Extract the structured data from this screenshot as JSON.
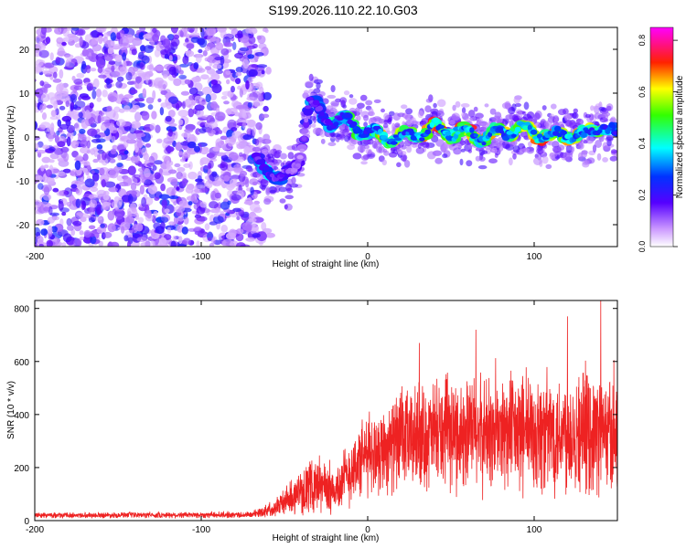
{
  "title": "S199.2026.110.22.10.G03",
  "chart_data": [
    {
      "type": "heatmap",
      "xlabel": "Height of straight line (km)",
      "ylabel": "Frequency (Hz)",
      "xlim": [
        -200,
        150
      ],
      "ylim": [
        -25,
        25
      ],
      "xticks": [
        -200,
        -100,
        0,
        100
      ],
      "yticks": [
        -20,
        -10,
        0,
        10,
        20
      ],
      "xtick_labels": [
        "-200",
        "-100",
        "0",
        "100"
      ],
      "ytick_labels": [
        "-20",
        "-10",
        "0",
        "10",
        "20"
      ],
      "noise_region": {
        "x_range": [
          -200,
          -62
        ],
        "frequency_range": [
          -25,
          25
        ],
        "amplitude_range": [
          0.05,
          0.2
        ]
      },
      "ridge": [
        {
          "x": -67,
          "freq": -6,
          "amp": 0.3
        },
        {
          "x": -60,
          "freq": -7,
          "amp": 0.35
        },
        {
          "x": -52,
          "freq": -10,
          "amp": 0.28
        },
        {
          "x": -45,
          "freq": -8,
          "amp": 0.2
        },
        {
          "x": -40,
          "freq": -3,
          "amp": 0.15
        },
        {
          "x": -35,
          "freq": 8,
          "amp": 0.3
        },
        {
          "x": -30,
          "freq": 6,
          "amp": 0.3
        },
        {
          "x": -25,
          "freq": 4,
          "amp": 0.35
        },
        {
          "x": -20,
          "freq": 4,
          "amp": 0.4
        },
        {
          "x": -10,
          "freq": 3,
          "amp": 0.45
        },
        {
          "x": 0,
          "freq": 1,
          "amp": 0.45
        },
        {
          "x": 10,
          "freq": 0,
          "amp": 0.6
        },
        {
          "x": 20,
          "freq": 0,
          "amp": 0.55
        },
        {
          "x": 30,
          "freq": 1,
          "amp": 0.6
        },
        {
          "x": 40,
          "freq": 2,
          "amp": 0.7
        },
        {
          "x": 50,
          "freq": 1,
          "amp": 0.55
        },
        {
          "x": 60,
          "freq": 1,
          "amp": 0.65
        },
        {
          "x": 70,
          "freq": 0,
          "amp": 0.6
        },
        {
          "x": 80,
          "freq": 1,
          "amp": 0.55
        },
        {
          "x": 90,
          "freq": 2,
          "amp": 0.6
        },
        {
          "x": 100,
          "freq": 1,
          "amp": 0.7
        },
        {
          "x": 110,
          "freq": 0,
          "amp": 0.6
        },
        {
          "x": 120,
          "freq": 1,
          "amp": 0.65
        },
        {
          "x": 130,
          "freq": 0,
          "amp": 0.55
        },
        {
          "x": 140,
          "freq": 3,
          "amp": 0.5
        },
        {
          "x": 150,
          "freq": 0,
          "amp": 0.45
        }
      ],
      "colorbar": {
        "label": "Normalized spectral amplitude",
        "range": [
          0,
          0.85
        ],
        "ticks": [
          0.0,
          0.2,
          0.4,
          0.6,
          0.8
        ],
        "tick_labels": [
          "0.0",
          "0.2",
          "0.4",
          "0.6",
          "0.8"
        ],
        "colors": [
          "#ffffff",
          "#9966ff",
          "#0000ff",
          "#00ffff",
          "#00ff00",
          "#ffff00",
          "#ff0000",
          "#ff00ff"
        ]
      }
    },
    {
      "type": "line",
      "xlabel": "Height of straight line (km)",
      "ylabel": "SNR (10 * v/v)",
      "xlim": [
        -200,
        150
      ],
      "ylim": [
        0,
        830
      ],
      "xticks": [
        -200,
        -100,
        0,
        100
      ],
      "yticks": [
        0,
        200,
        400,
        600,
        800
      ],
      "xtick_labels": [
        "-200",
        "-100",
        "0",
        "100"
      ],
      "ytick_labels": [
        "0",
        "200",
        "400",
        "600",
        "800"
      ],
      "color": "#ee2222",
      "envelope": [
        {
          "x": -200,
          "mean": 20,
          "spread": 10
        },
        {
          "x": -70,
          "mean": 22,
          "spread": 12
        },
        {
          "x": -60,
          "mean": 40,
          "spread": 25
        },
        {
          "x": -50,
          "mean": 70,
          "spread": 50
        },
        {
          "x": -40,
          "mean": 110,
          "spread": 80
        },
        {
          "x": -30,
          "mean": 140,
          "spread": 110
        },
        {
          "x": -20,
          "mean": 110,
          "spread": 90
        },
        {
          "x": -10,
          "mean": 190,
          "spread": 130
        },
        {
          "x": 0,
          "mean": 250,
          "spread": 150
        },
        {
          "x": 20,
          "mean": 300,
          "spread": 180
        },
        {
          "x": 40,
          "mean": 320,
          "spread": 200
        },
        {
          "x": 60,
          "mean": 330,
          "spread": 210
        },
        {
          "x": 80,
          "mean": 330,
          "spread": 220
        },
        {
          "x": 100,
          "mean": 330,
          "spread": 230
        },
        {
          "x": 120,
          "mean": 340,
          "spread": 230
        },
        {
          "x": 140,
          "mean": 330,
          "spread": 220
        },
        {
          "x": 150,
          "mean": 320,
          "spread": 210
        }
      ],
      "peaks": [
        {
          "x": 140,
          "y": 830
        },
        {
          "x": 120,
          "y": 770
        },
        {
          "x": 65,
          "y": 720
        },
        {
          "x": 31,
          "y": 670
        }
      ]
    }
  ]
}
